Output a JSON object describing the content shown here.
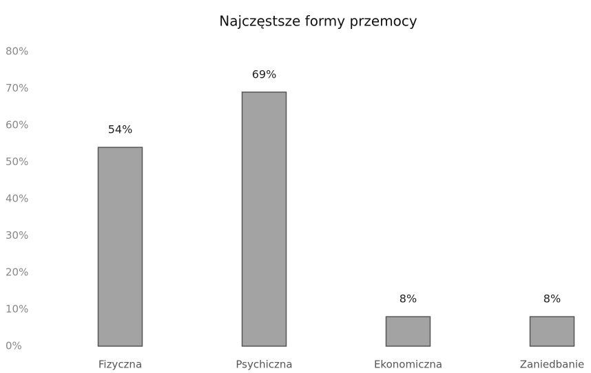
{
  "chart_data": {
    "type": "bar",
    "title": "Najczęstsze formy przemocy",
    "categories": [
      "Fizyczna",
      "Psychiczna",
      "Ekonomiczna",
      "Zaniedbanie"
    ],
    "values": [
      54,
      69,
      8,
      8
    ],
    "value_labels": [
      "54%",
      "69%",
      "8%",
      "8%"
    ],
    "color": "#a3a3a3",
    "ylim": [
      0,
      80
    ],
    "yticks": [
      {
        "value": 0,
        "label": "0%"
      },
      {
        "value": 10,
        "label": "10%"
      },
      {
        "value": 20,
        "label": "20%"
      },
      {
        "value": 30,
        "label": "30%"
      },
      {
        "value": 40,
        "label": "40%"
      },
      {
        "value": 50,
        "label": "50%"
      },
      {
        "value": 60,
        "label": "60%"
      },
      {
        "value": 70,
        "label": "70%"
      },
      {
        "value": 80,
        "label": "80%"
      }
    ],
    "grid": false
  }
}
